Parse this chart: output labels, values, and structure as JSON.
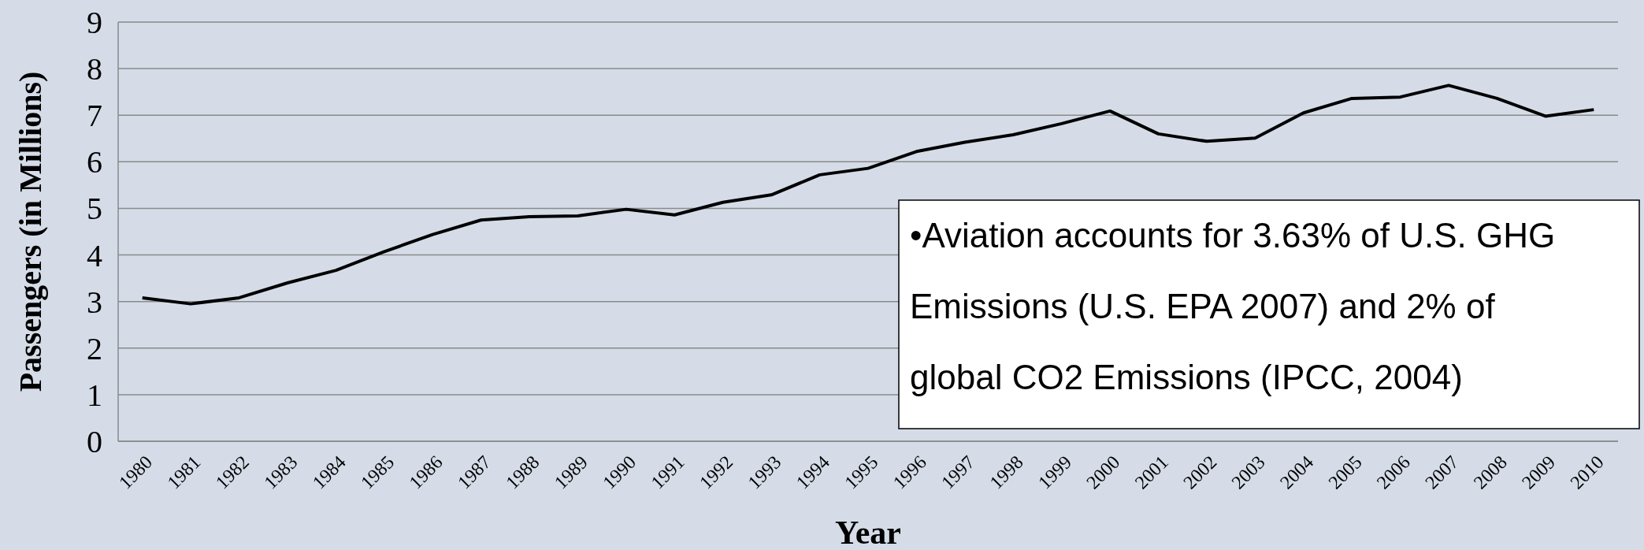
{
  "chart_data": {
    "type": "line",
    "xlabel": "Year",
    "ylabel": "Passengers (in Millions)",
    "categories": [
      "1980",
      "1981",
      "1982",
      "1983",
      "1984",
      "1985",
      "1986",
      "1987",
      "1988",
      "1989",
      "1990",
      "1991",
      "1992",
      "1993",
      "1994",
      "1995",
      "1996",
      "1997",
      "1998",
      "1999",
      "2000",
      "2001",
      "2002",
      "2003",
      "2004",
      "2005",
      "2006",
      "2007",
      "2008",
      "2009",
      "2010"
    ],
    "series": [
      {
        "color": "#000000",
        "values": [
          3.08,
          2.95,
          3.08,
          3.4,
          3.67,
          4.07,
          4.44,
          4.75,
          4.82,
          4.84,
          4.98,
          4.86,
          5.13,
          5.29,
          5.72,
          5.86,
          6.22,
          6.42,
          6.58,
          6.82,
          7.09,
          6.6,
          6.44,
          6.51,
          7.05,
          7.36,
          7.39,
          7.64,
          7.36,
          6.98,
          7.12
        ]
      }
    ],
    "ylim": [
      0,
      9
    ],
    "yticks": [
      0,
      1,
      2,
      3,
      4,
      5,
      6,
      7,
      8,
      9
    ],
    "grid": "y",
    "marker": "none",
    "line_style": "solid",
    "annotations": [
      "•Aviation accounts for 3.63% of U.S. GHG Emissions (U.S. EPA 2007) and 2% of global CO2 Emissions (IPCC, 2004)"
    ]
  }
}
